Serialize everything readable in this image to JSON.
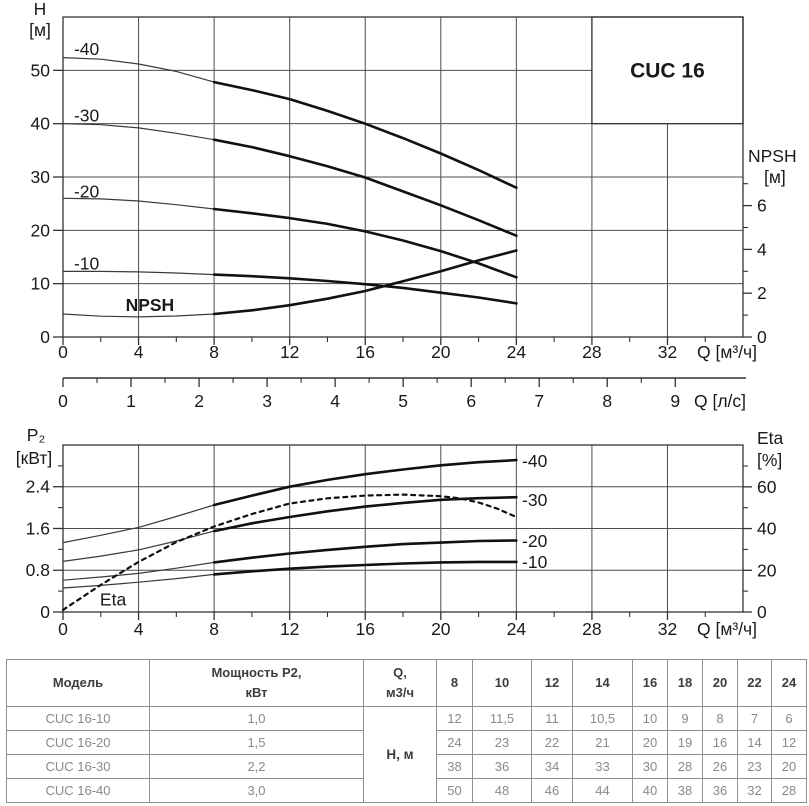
{
  "page_title": "CUC 16 pump performance curves",
  "colors": {
    "background": "#ffffff",
    "grid": "#4d4d4d",
    "frame": "#333333",
    "curve_thick": "#111111",
    "curve_thin": "#3a3a3a",
    "text": "#1a1a1a",
    "table_border": "#8f8f8f",
    "table_text": "#8a8a8a",
    "table_header_text": "#3d3d3d"
  },
  "chart_data": [
    {
      "id": "head-npsh",
      "type": "line",
      "title": "CUC 16",
      "x_axis": {
        "unit_label": "Q [м³/ч]",
        "range": [
          0,
          36
        ],
        "major_ticks": [
          0,
          4,
          8,
          12,
          16,
          20,
          24,
          28,
          32
        ],
        "minor_ticks": [
          2,
          6,
          10,
          14,
          18,
          22,
          26,
          30,
          34
        ]
      },
      "y_axis": {
        "name": "H",
        "unit": "[м]",
        "range": [
          0,
          60
        ],
        "major_ticks": [
          0,
          10,
          20,
          30,
          40,
          50
        ],
        "minor_ticks": []
      },
      "y2_axis": {
        "name": "NPSH",
        "unit": "[м]",
        "major_ticks": [
          0,
          2,
          4,
          6
        ],
        "minor_ticks": [
          1,
          3,
          5,
          7
        ]
      },
      "x2_axis": {
        "unit_label": "Q [л/с]",
        "major_ticks": [
          0,
          1,
          2,
          3,
          4,
          5,
          6,
          7,
          8,
          9
        ],
        "minor_ticks": [
          0.5,
          1.5,
          2.5,
          3.5,
          4.5,
          5.5,
          6.5,
          7.5,
          8.5
        ]
      },
      "series": [
        {
          "name": "-40",
          "axis": "y",
          "thick_from": 8,
          "points": [
            [
              0,
              52.4
            ],
            [
              2,
              52.1
            ],
            [
              4,
              51.2
            ],
            [
              6,
              49.8
            ],
            [
              8,
              47.8
            ],
            [
              10,
              46.3
            ],
            [
              12,
              44.6
            ],
            [
              14,
              42.4
            ],
            [
              16,
              40
            ],
            [
              18,
              37.3
            ],
            [
              20,
              34.4
            ],
            [
              22,
              31.3
            ],
            [
              24,
              28
            ]
          ]
        },
        {
          "name": "-30",
          "axis": "y",
          "thick_from": 8,
          "points": [
            [
              0,
              40
            ],
            [
              2,
              39.8
            ],
            [
              4,
              39.2
            ],
            [
              6,
              38.2
            ],
            [
              8,
              37
            ],
            [
              10,
              35.6
            ],
            [
              12,
              33.9
            ],
            [
              14,
              32
            ],
            [
              16,
              29.9
            ],
            [
              18,
              27.3
            ],
            [
              20,
              24.7
            ],
            [
              22,
              21.9
            ],
            [
              24,
              19
            ]
          ]
        },
        {
          "name": "-20",
          "axis": "y",
          "thick_from": 8,
          "points": [
            [
              0,
              26
            ],
            [
              2,
              25.9
            ],
            [
              4,
              25.5
            ],
            [
              6,
              24.8
            ],
            [
              8,
              24
            ],
            [
              10,
              23.2
            ],
            [
              12,
              22.3
            ],
            [
              14,
              21.2
            ],
            [
              16,
              19.8
            ],
            [
              18,
              18.1
            ],
            [
              20,
              16.1
            ],
            [
              22,
              13.8
            ],
            [
              24,
              11.2
            ]
          ]
        },
        {
          "name": "-10",
          "axis": "y",
          "thick_from": 8,
          "points": [
            [
              0,
              12.3
            ],
            [
              2,
              12.3
            ],
            [
              4,
              12.2
            ],
            [
              6,
              12
            ],
            [
              8,
              11.7
            ],
            [
              10,
              11.4
            ],
            [
              12,
              11
            ],
            [
              14,
              10.5
            ],
            [
              16,
              9.9
            ],
            [
              18,
              9.2
            ],
            [
              20,
              8.3
            ],
            [
              22,
              7.4
            ],
            [
              24,
              6.3
            ]
          ]
        },
        {
          "name": "NPSH",
          "axis": "y2",
          "thick_from": 8,
          "points": [
            [
              0,
              1.05
            ],
            [
              2,
              0.95
            ],
            [
              4,
              0.92
            ],
            [
              6,
              0.96
            ],
            [
              8,
              1.05
            ],
            [
              10,
              1.22
            ],
            [
              12,
              1.45
            ],
            [
              14,
              1.75
            ],
            [
              16,
              2.1
            ],
            [
              18,
              2.55
            ],
            [
              20,
              3
            ],
            [
              22,
              3.5
            ],
            [
              24,
              3.95
            ]
          ]
        }
      ],
      "labels": [
        {
          "text": "-40",
          "q": 1.25,
          "v": 54.0,
          "bold": false
        },
        {
          "text": "-30",
          "q": 1.25,
          "v": 41.5,
          "bold": false
        },
        {
          "text": "-20",
          "q": 1.25,
          "v": 27.3,
          "bold": false
        },
        {
          "text": "-10",
          "q": 1.25,
          "v": 13.8,
          "bold": false
        },
        {
          "text": "NPSH",
          "q": 4.6,
          "v": 6.0,
          "bold": true
        }
      ],
      "title_box": {
        "q0": 28,
        "v1": 40
      }
    },
    {
      "id": "power-eta",
      "type": "line",
      "x_axis": {
        "unit_label": "Q [м³/ч]",
        "range": [
          0,
          36
        ],
        "major_ticks": [
          0,
          4,
          8,
          12,
          16,
          20,
          24,
          28,
          32
        ],
        "minor_ticks": [
          2,
          6,
          10,
          14,
          18,
          22,
          26,
          30,
          34
        ]
      },
      "y_axis": {
        "name": "P₂",
        "unit": "[кВт]",
        "range": [
          0,
          3.2
        ],
        "major_ticks": [
          0,
          0.8,
          1.6,
          2.4
        ],
        "minor_ticks": [
          0.4,
          1.2,
          2.0,
          2.8
        ],
        "tick_labels": [
          "0",
          "0.8",
          "1.6",
          "2.4"
        ]
      },
      "y2_axis": {
        "name": "Eta",
        "unit": "[%]",
        "major_ticks": [
          0,
          20,
          40,
          60
        ],
        "minor_ticks": [
          10,
          30,
          50,
          70
        ]
      },
      "series": [
        {
          "name": "-40",
          "axis": "y",
          "thick_from": 8,
          "points": [
            [
              0,
              1.33
            ],
            [
              2,
              1.47
            ],
            [
              4,
              1.62
            ],
            [
              6,
              1.83
            ],
            [
              8,
              2.05
            ],
            [
              10,
              2.23
            ],
            [
              12,
              2.4
            ],
            [
              14,
              2.53
            ],
            [
              16,
              2.64
            ],
            [
              18,
              2.73
            ],
            [
              20,
              2.81
            ],
            [
              22,
              2.87
            ],
            [
              24,
              2.91
            ]
          ]
        },
        {
          "name": "-30",
          "axis": "y",
          "thick_from": 8,
          "points": [
            [
              0,
              0.97
            ],
            [
              2,
              1.07
            ],
            [
              4,
              1.19
            ],
            [
              6,
              1.36
            ],
            [
              8,
              1.55
            ],
            [
              10,
              1.7
            ],
            [
              12,
              1.82
            ],
            [
              14,
              1.93
            ],
            [
              16,
              2.02
            ],
            [
              18,
              2.09
            ],
            [
              20,
              2.15
            ],
            [
              22,
              2.18
            ],
            [
              24,
              2.2
            ]
          ]
        },
        {
          "name": "-20",
          "axis": "y",
          "thick_from": 8,
          "points": [
            [
              0,
              0.61
            ],
            [
              2,
              0.67
            ],
            [
              4,
              0.74
            ],
            [
              6,
              0.84
            ],
            [
              8,
              0.95
            ],
            [
              10,
              1.04
            ],
            [
              12,
              1.12
            ],
            [
              14,
              1.19
            ],
            [
              16,
              1.25
            ],
            [
              18,
              1.3
            ],
            [
              20,
              1.33
            ],
            [
              22,
              1.36
            ],
            [
              24,
              1.37
            ]
          ]
        },
        {
          "name": "-10",
          "axis": "y",
          "thick_from": 8,
          "points": [
            [
              0,
              0.46
            ],
            [
              2,
              0.51
            ],
            [
              4,
              0.57
            ],
            [
              6,
              0.64
            ],
            [
              8,
              0.72
            ],
            [
              10,
              0.78
            ],
            [
              12,
              0.83
            ],
            [
              14,
              0.87
            ],
            [
              16,
              0.9
            ],
            [
              18,
              0.93
            ],
            [
              20,
              0.95
            ],
            [
              22,
              0.96
            ],
            [
              24,
              0.96
            ]
          ]
        },
        {
          "name": "Eta",
          "axis": "y2",
          "style": "dotted",
          "points": [
            [
              0,
              1
            ],
            [
              2,
              13
            ],
            [
              4,
              24
            ],
            [
              6,
              33.5
            ],
            [
              8,
              41
            ],
            [
              10,
              47
            ],
            [
              12,
              52
            ],
            [
              14,
              54.5
            ],
            [
              16,
              55.8
            ],
            [
              18,
              56.3
            ],
            [
              20,
              55.5
            ],
            [
              21,
              54.5
            ],
            [
              22,
              52.5
            ],
            [
              23,
              49.5
            ],
            [
              24,
              45.5
            ]
          ]
        }
      ],
      "labels": [
        {
          "text": "-40",
          "q": 24.3,
          "v": 2.89,
          "anchor": "start",
          "bold": false
        },
        {
          "text": "-30",
          "q": 24.3,
          "v": 2.15,
          "anchor": "start",
          "bold": false
        },
        {
          "text": "-20",
          "q": 24.3,
          "v": 1.36,
          "anchor": "start",
          "bold": false
        },
        {
          "text": "-10",
          "q": 24.3,
          "v": 0.96,
          "anchor": "start",
          "bold": false
        },
        {
          "text": "Eta",
          "q": 2.65,
          "v": 0.24,
          "bold": false
        }
      ]
    }
  ],
  "table": {
    "header": {
      "model": "Модель",
      "power_line1": "Мощность P2,",
      "power_line2": "кВт",
      "q_line1": "Q,",
      "q_line2": "м3/ч",
      "flow_values": [
        "8",
        "10",
        "12",
        "14",
        "16",
        "18",
        "20",
        "22",
        "24"
      ]
    },
    "h_label": "Н, м",
    "rows": [
      {
        "model": "CUC 16-10",
        "power": "1,0",
        "values": [
          "12",
          "11,5",
          "11",
          "10,5",
          "10",
          "9",
          "8",
          "7",
          "6"
        ]
      },
      {
        "model": "CUC 16-20",
        "power": "1,5",
        "values": [
          "24",
          "23",
          "22",
          "21",
          "20",
          "19",
          "16",
          "14",
          "12"
        ]
      },
      {
        "model": "CUC 16-30",
        "power": "2,2",
        "values": [
          "38",
          "36",
          "34",
          "33",
          "30",
          "28",
          "26",
          "23",
          "20"
        ]
      },
      {
        "model": "CUC 16-40",
        "power": "3,0",
        "values": [
          "50",
          "48",
          "46",
          "44",
          "40",
          "38",
          "36",
          "32",
          "28"
        ]
      }
    ]
  }
}
